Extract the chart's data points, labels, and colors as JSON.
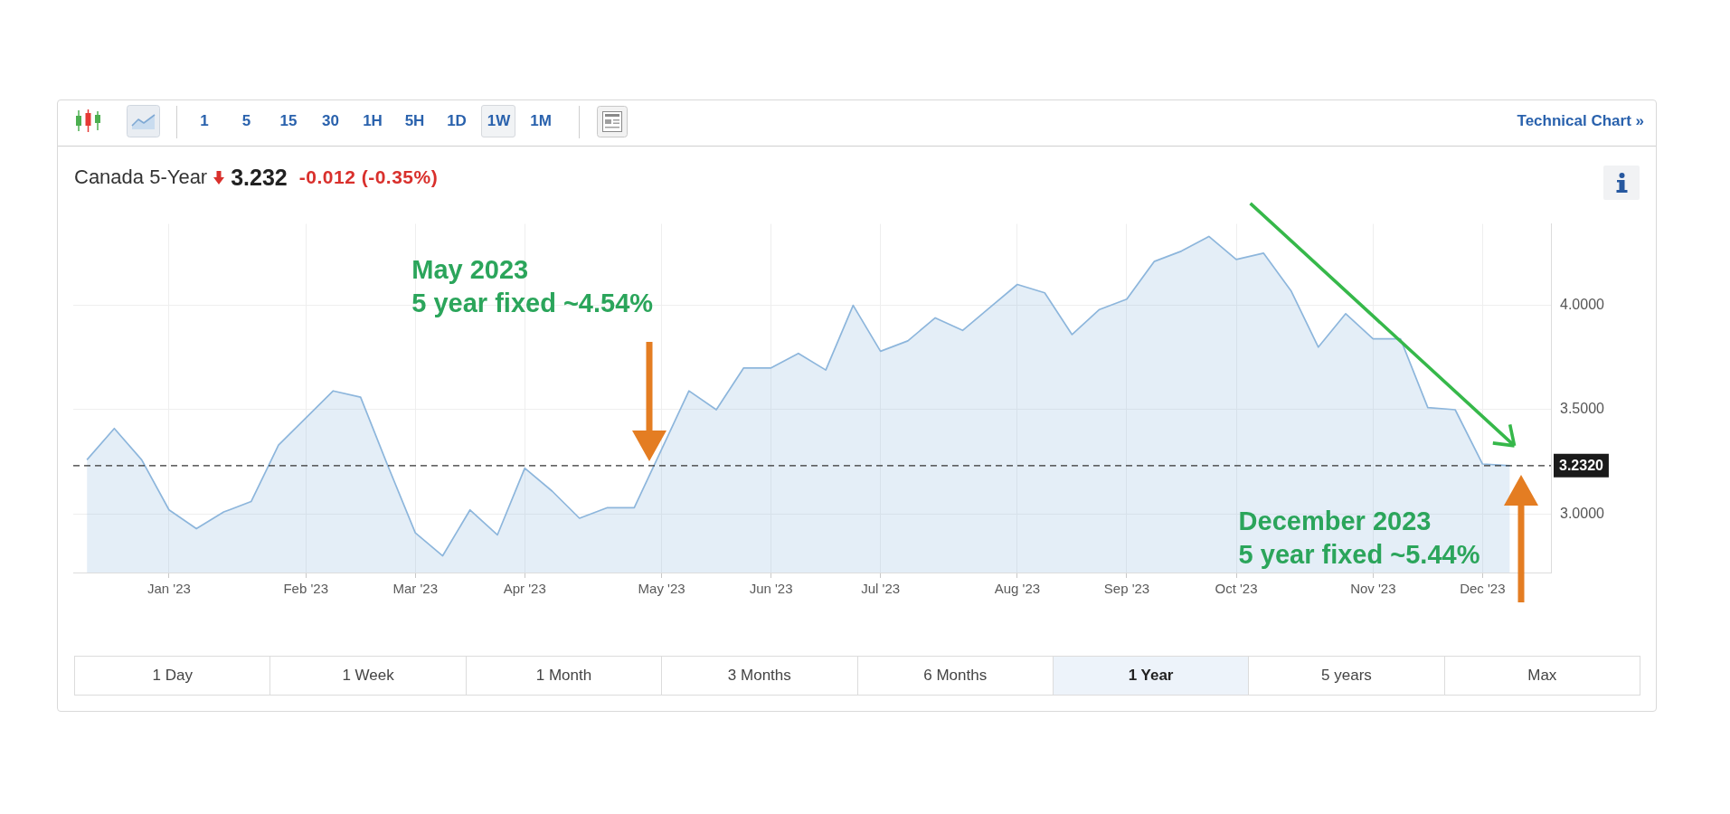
{
  "chart_data": {
    "type": "area",
    "title": "Canada 5-Year",
    "categories": [
      null,
      null,
      null,
      "Jan '23",
      null,
      null,
      null,
      null,
      "Feb '23",
      null,
      null,
      null,
      "Mar '23",
      null,
      null,
      null,
      "Apr '23",
      null,
      null,
      null,
      null,
      "May '23",
      null,
      null,
      null,
      "Jun '23",
      null,
      null,
      null,
      "Jul '23",
      null,
      null,
      null,
      null,
      "Aug '23",
      null,
      null,
      null,
      "Sep '23",
      null,
      null,
      null,
      "Oct '23",
      null,
      null,
      null,
      null,
      "Nov '23",
      null,
      null,
      null,
      "Dec '23",
      null
    ],
    "values": [
      3.26,
      3.41,
      3.26,
      3.02,
      2.93,
      3.01,
      3.06,
      3.33,
      3.46,
      3.59,
      3.56,
      3.23,
      2.91,
      2.8,
      3.02,
      2.9,
      3.22,
      3.11,
      2.98,
      3.03,
      3.03,
      3.31,
      3.59,
      3.5,
      3.7,
      3.7,
      3.77,
      3.69,
      4.0,
      3.78,
      3.83,
      3.94,
      3.88,
      3.99,
      4.1,
      4.06,
      3.86,
      3.98,
      4.03,
      4.21,
      4.26,
      4.33,
      4.22,
      4.25,
      4.07,
      3.8,
      3.96,
      3.84,
      3.84,
      3.51,
      3.5,
      3.24,
      3.232
    ],
    "color": "#8db6dc",
    "ylim": [
      2.72,
      4.39
    ],
    "yticks": [
      {
        "value": 3,
        "label": "3.0000"
      },
      {
        "value": 3.5,
        "label": "3.5000"
      },
      {
        "value": 4,
        "label": "4.0000"
      }
    ],
    "grid": true,
    "ref_lines": [
      {
        "axis": "y",
        "value": 3.232,
        "label": "3.2320",
        "color": "#333333",
        "line_style": "dashed"
      }
    ],
    "annotations": [
      "3.232",
      "-0.012 (-0.35%)",
      "May 2023\n5 year fixed ~4.54%",
      {
        "text": "December 2023\n5 year fixed ~5.44%",
        "y": 3.232
      },
      "1",
      "5",
      "15",
      "30",
      "1H",
      "5H",
      "1D",
      "1W",
      "1M",
      "Technical Chart »",
      "1 Day",
      "1 Week",
      "1 Month",
      "3 Months",
      "6 Months",
      "1 Year",
      "5 years",
      "Max"
    ]
  }
}
